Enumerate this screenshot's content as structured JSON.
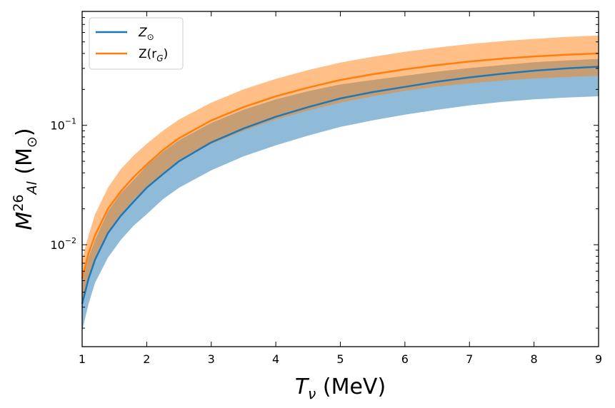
{
  "chart_data": {
    "type": "line",
    "xlabel": {
      "main": "T",
      "sub": "ν",
      "unit": " (MeV)"
    },
    "ylabel": {
      "main": "M",
      "sup": "26",
      "sub": "Al",
      "unit_open": " (M",
      "unit_sub": "⊙",
      "unit_close": ")"
    },
    "xlim": [
      1,
      9
    ],
    "ylim": [
      0.0014,
      0.9
    ],
    "yscale": "log",
    "x_ticks": [
      1,
      2,
      3,
      4,
      5,
      6,
      7,
      8,
      9
    ],
    "x_tick_labels": [
      "1",
      "2",
      "3",
      "4",
      "5",
      "6",
      "7",
      "8",
      "9"
    ],
    "y_ticks": [
      0.01,
      0.1
    ],
    "y_tick_labels": [
      {
        "base": "10",
        "exp": "−2"
      },
      {
        "base": "10",
        "exp": "−1"
      }
    ],
    "legend_position": "top-left",
    "grid": false,
    "x": [
      1.0,
      1.1,
      1.2,
      1.4,
      1.6,
      1.8,
      2.0,
      2.25,
      2.5,
      3.0,
      3.5,
      4.0,
      4.5,
      5.0,
      5.5,
      6.0,
      6.5,
      7.0,
      7.5,
      8.0,
      8.5,
      9.0
    ],
    "series": [
      {
        "name": {
          "main": "Z",
          "sub": "⊙",
          "tail": ""
        },
        "color": "#1f77b4",
        "band_color": "#1f77b4",
        "band_opacity": 0.5,
        "values": [
          0.0032,
          0.0052,
          0.0075,
          0.0125,
          0.0175,
          0.023,
          0.03,
          0.039,
          0.05,
          0.072,
          0.094,
          0.118,
          0.142,
          0.168,
          0.19,
          0.21,
          0.232,
          0.252,
          0.27,
          0.287,
          0.3,
          0.31
        ],
        "lower": [
          0.0019,
          0.0032,
          0.0048,
          0.0078,
          0.011,
          0.0145,
          0.018,
          0.024,
          0.03,
          0.042,
          0.055,
          0.068,
          0.082,
          0.097,
          0.11,
          0.123,
          0.135,
          0.147,
          0.157,
          0.165,
          0.171,
          0.175
        ],
        "upper": [
          0.0048,
          0.0078,
          0.011,
          0.019,
          0.027,
          0.035,
          0.046,
          0.06,
          0.075,
          0.105,
          0.135,
          0.165,
          0.193,
          0.22,
          0.24,
          0.26,
          0.282,
          0.302,
          0.32,
          0.338,
          0.35,
          0.36
        ]
      },
      {
        "name": {
          "main": "Z(r",
          "sub": "G",
          "tail": ")"
        },
        "color": "#ff7f0e",
        "band_color": "#ff7f0e",
        "band_opacity": 0.5,
        "values": [
          0.0052,
          0.0085,
          0.012,
          0.02,
          0.028,
          0.037,
          0.047,
          0.062,
          0.078,
          0.11,
          0.142,
          0.175,
          0.207,
          0.24,
          0.268,
          0.295,
          0.32,
          0.342,
          0.362,
          0.378,
          0.39,
          0.4
        ],
        "lower": [
          0.0032,
          0.0052,
          0.0075,
          0.0125,
          0.018,
          0.024,
          0.03,
          0.04,
          0.05,
          0.07,
          0.09,
          0.112,
          0.133,
          0.155,
          0.175,
          0.194,
          0.211,
          0.225,
          0.237,
          0.247,
          0.254,
          0.26
        ],
        "upper": [
          0.0075,
          0.012,
          0.018,
          0.03,
          0.043,
          0.056,
          0.07,
          0.09,
          0.112,
          0.155,
          0.2,
          0.245,
          0.29,
          0.335,
          0.375,
          0.413,
          0.448,
          0.48,
          0.507,
          0.53,
          0.55,
          0.565
        ]
      }
    ]
  }
}
